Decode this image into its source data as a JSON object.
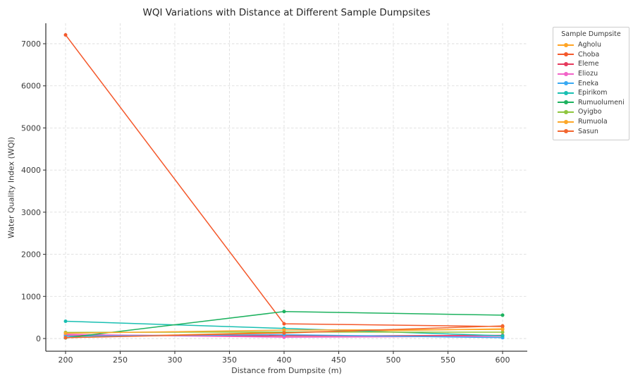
{
  "chart_data": {
    "type": "line",
    "title": "WQI Variations with Distance at Different Sample Dumpsites",
    "xlabel": "Distance from Dumpsite (m)",
    "ylabel": "Water Quality Index (WQI)",
    "x": [
      200,
      400,
      600
    ],
    "x_ticks": [
      200,
      250,
      300,
      350,
      400,
      450,
      500,
      550,
      600
    ],
    "y_ticks": [
      0,
      1000,
      2000,
      3000,
      4000,
      5000,
      6000,
      7000
    ],
    "xlim": [
      182,
      623
    ],
    "ylim": [
      -300,
      7490
    ],
    "grid": "dashed-light",
    "legend_title": "Sample Dumpsite",
    "legend_position": "outside-top-right",
    "marker": "circle",
    "series": [
      {
        "name": "Agholu",
        "color": "#FFA424",
        "values": [
          20,
          150,
          230
        ]
      },
      {
        "name": "Choba",
        "color": "#F4582B",
        "values": [
          7210,
          350,
          285
        ]
      },
      {
        "name": "Eleme",
        "color": "#E6395C",
        "values": [
          85,
          60,
          75
        ]
      },
      {
        "name": "Eliozu",
        "color": "#F263C8",
        "values": [
          100,
          30,
          55
        ]
      },
      {
        "name": "Eneka",
        "color": "#39A9F2",
        "values": [
          55,
          90,
          20
        ]
      },
      {
        "name": "Epirikom",
        "color": "#19BFB2",
        "values": [
          410,
          240,
          65
        ]
      },
      {
        "name": "Rumuolumeni",
        "color": "#1DB25F",
        "values": [
          15,
          640,
          555
        ]
      },
      {
        "name": "Oyigbo",
        "color": "#8FC63E",
        "values": [
          145,
          155,
          150
        ]
      },
      {
        "name": "Rumuola",
        "color": "#FCA728",
        "values": [
          125,
          200,
          215
        ]
      },
      {
        "name": "Sasun",
        "color": "#F2662F",
        "values": [
          20,
          130,
          300
        ]
      }
    ]
  }
}
